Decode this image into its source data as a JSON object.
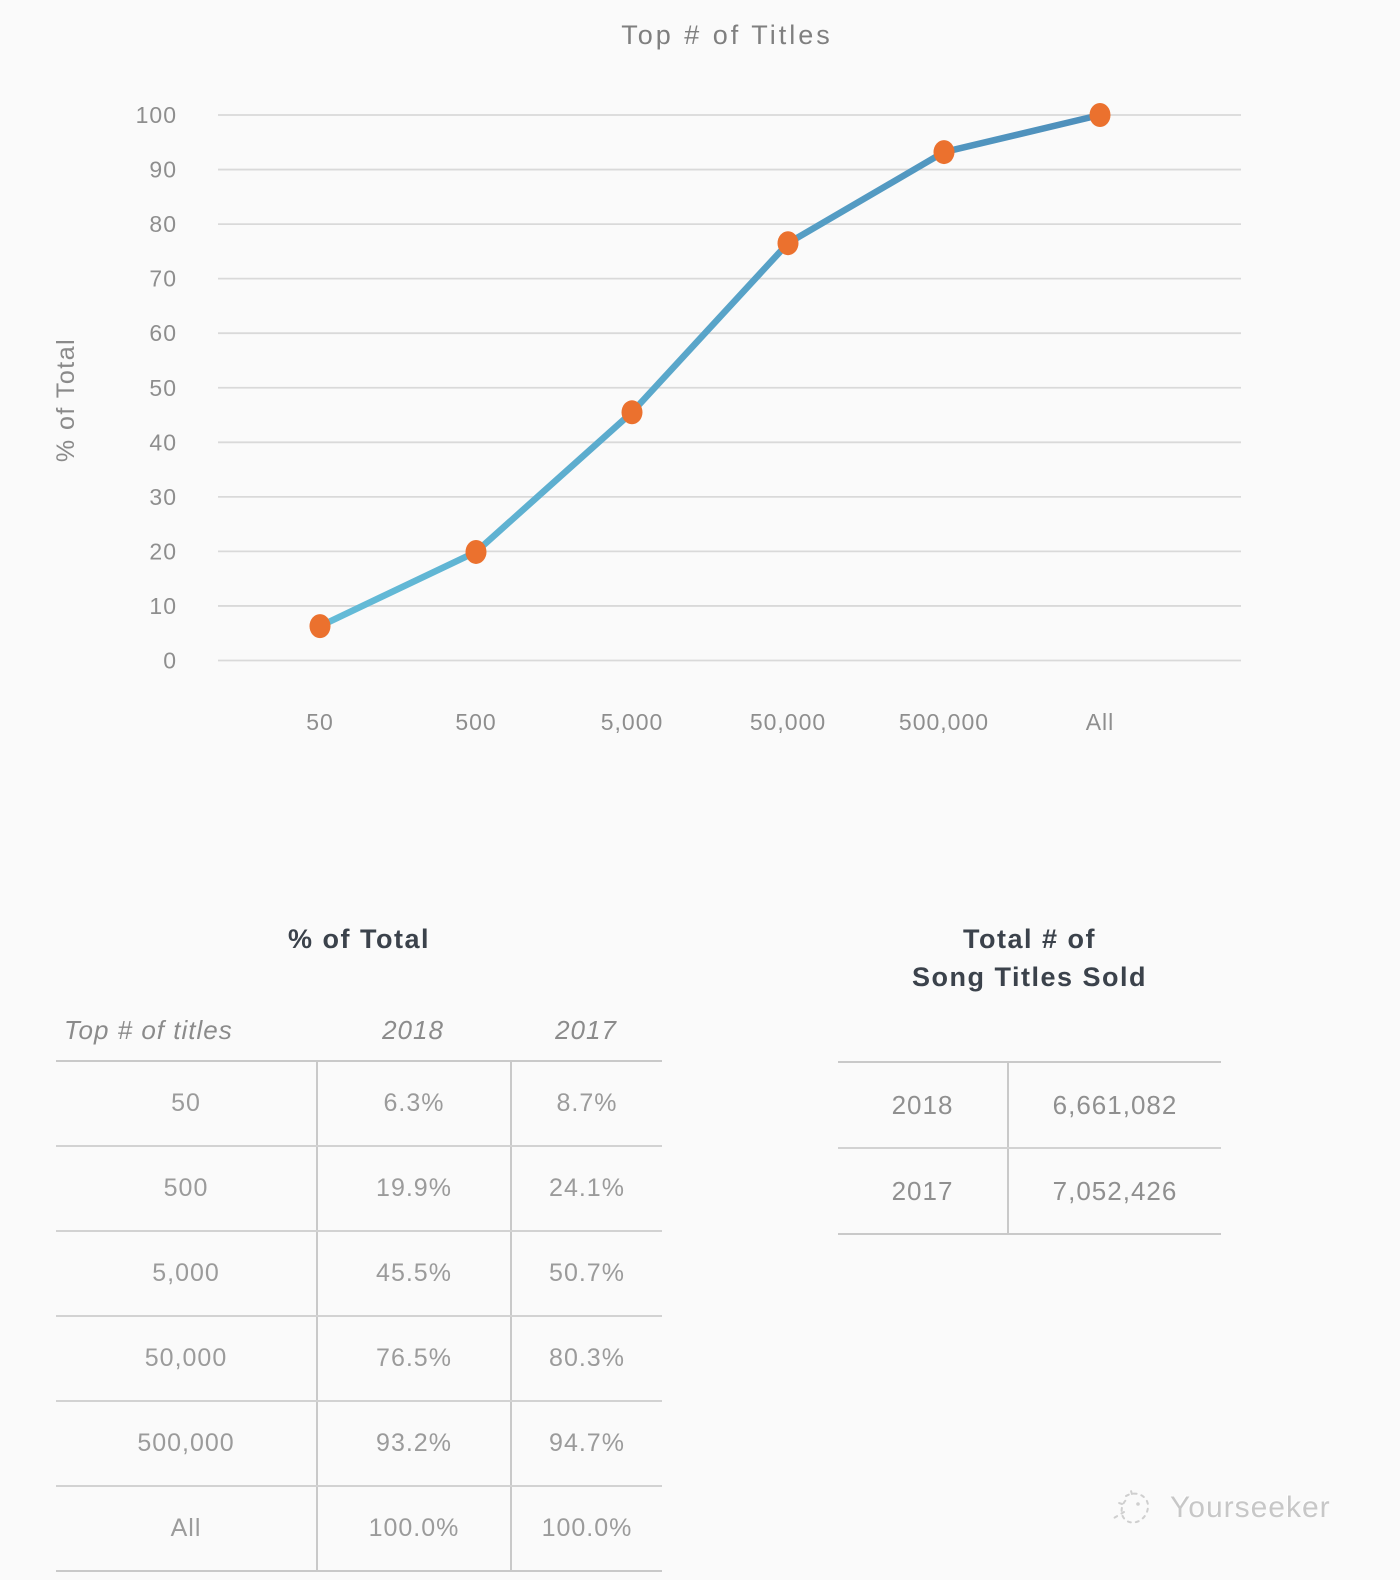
{
  "chart_data": {
    "type": "line",
    "title": "Top # of Titles",
    "xlabel": "",
    "ylabel": "% of Total",
    "categories": [
      "50",
      "500",
      "5,000",
      "50,000",
      "500,000",
      "All"
    ],
    "series": [
      {
        "name": "2018",
        "values": [
          6.3,
          19.9,
          45.5,
          76.5,
          93.2,
          100.0
        ]
      }
    ],
    "ylim": [
      0,
      100
    ],
    "ytick_step": 10,
    "grid": true,
    "legend": "none",
    "colors": {
      "line_top": "#4e8fbb",
      "line_bottom": "#64bcd8",
      "marker": "#eb712e",
      "gridline": "#d9d9d9"
    }
  },
  "tables": {
    "percent_of_total": {
      "title": "% of Total",
      "headers": [
        "Top # of titles",
        "2018",
        "2017"
      ],
      "rows": [
        {
          "label": "50",
          "y2018": "6.3%",
          "y2017": "8.7%"
        },
        {
          "label": "500",
          "y2018": "19.9%",
          "y2017": "24.1%"
        },
        {
          "label": "5,000",
          "y2018": "45.5%",
          "y2017": "50.7%"
        },
        {
          "label": "50,000",
          "y2018": "76.5%",
          "y2017": "80.3%"
        },
        {
          "label": "500,000",
          "y2018": "93.2%",
          "y2017": "94.7%"
        },
        {
          "label": "All",
          "y2018": "100.0%",
          "y2017": "100.0%"
        }
      ]
    },
    "titles_sold": {
      "title_line1": "Total # of",
      "title_line2": "Song Titles Sold",
      "rows": [
        {
          "year": "2018",
          "value": "6,661,082"
        },
        {
          "year": "2017",
          "value": "7,052,426"
        }
      ]
    }
  },
  "footer": {
    "brand": "Yourseeker"
  }
}
